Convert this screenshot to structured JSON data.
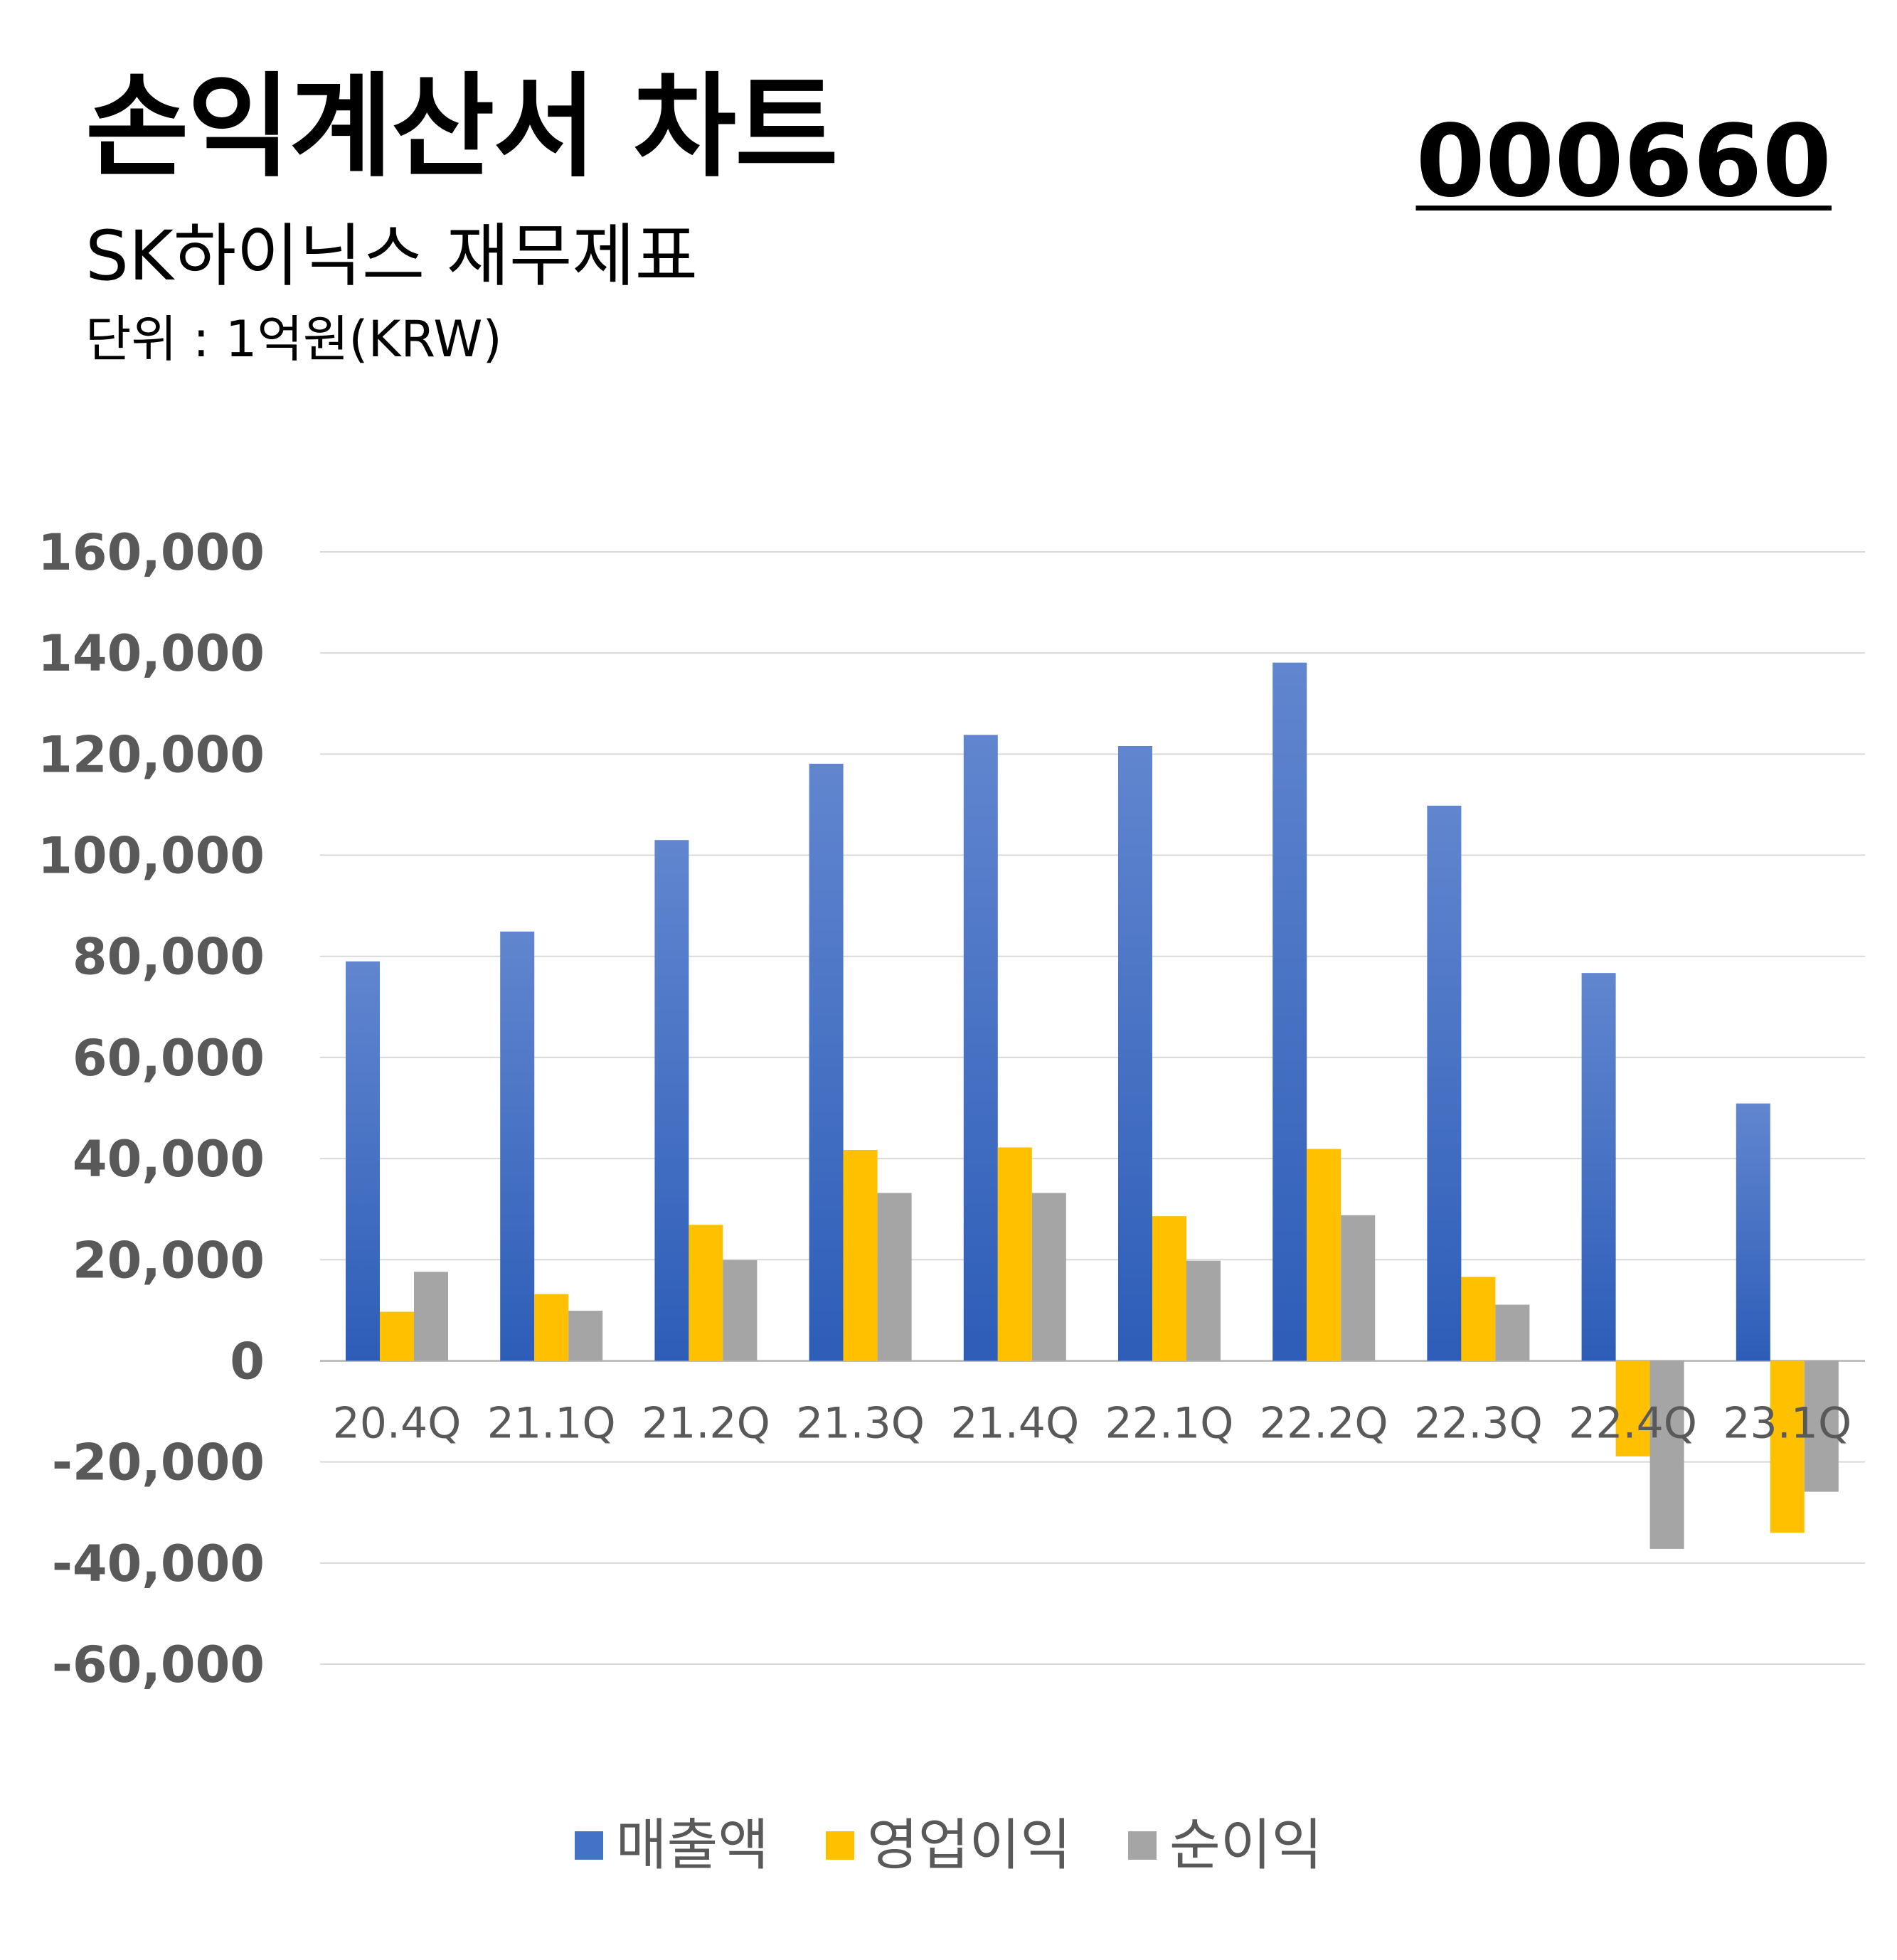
{
  "header": {
    "title": "손익계산서 차트",
    "code": "000660",
    "subtitle": "SK하이닉스 재무제표",
    "unit": "단위 : 1억원(KRW)"
  },
  "colors": {
    "revenue": "#4472C4",
    "operating_profit": "#FFC000",
    "net_profit": "#A5A5A5",
    "grid": "#D9D9D9",
    "tick_text": "#595959"
  },
  "chart_data": {
    "type": "bar",
    "categories": [
      "20.4Q",
      "21.1Q",
      "21.2Q",
      "21.3Q",
      "21.4Q",
      "22.1Q",
      "22.2Q",
      "22.3Q",
      "22.4Q",
      "23.1Q"
    ],
    "series": [
      {
        "name": "매출액",
        "color": "#4472C4",
        "values": [
          79000,
          84900,
          103000,
          118100,
          123800,
          121600,
          138100,
          109800,
          76700,
          50900
        ]
      },
      {
        "name": "영업이익",
        "color": "#FFC000",
        "values": [
          9700,
          13200,
          26900,
          41700,
          42200,
          28600,
          41900,
          16600,
          -18900,
          -34000
        ]
      },
      {
        "name": "순이익",
        "color": "#A5A5A5",
        "values": [
          17600,
          9900,
          19900,
          33200,
          33200,
          19800,
          28800,
          11100,
          -37200,
          -25900
        ]
      }
    ],
    "ylim": [
      -60000,
      160000
    ],
    "yticks": [
      160000,
      140000,
      120000,
      100000,
      80000,
      60000,
      40000,
      20000,
      0,
      -20000,
      -40000,
      -60000
    ],
    "ytick_labels": [
      "160,000",
      "140,000",
      "120,000",
      "100,000",
      "80,000",
      "60,000",
      "40,000",
      "20,000",
      "0",
      "-20,000",
      "-40,000",
      "-60,000"
    ],
    "grid": true,
    "legend": "bottom"
  }
}
